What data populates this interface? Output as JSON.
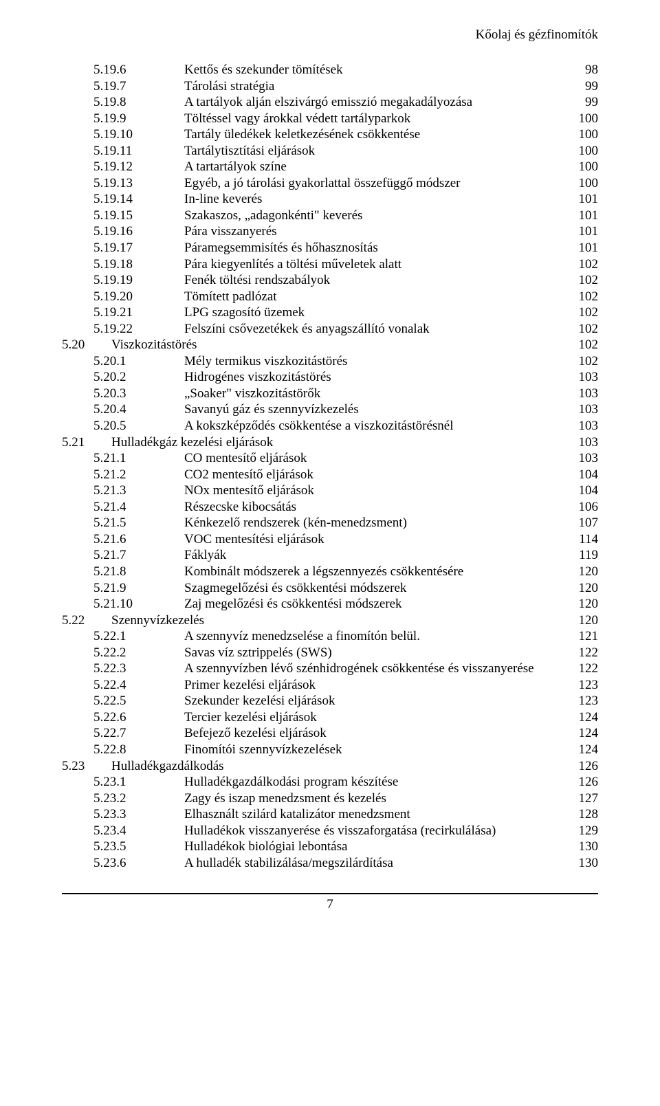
{
  "header": {
    "title": "Kőolaj és gézfinomítók"
  },
  "footer": {
    "page_number": "7"
  },
  "toc": {
    "entries": [
      {
        "level": 3,
        "num": "5.19.6",
        "text": "Kettős és szekunder tömítések",
        "page": "98"
      },
      {
        "level": 3,
        "num": "5.19.7",
        "text": "Tárolási stratégia",
        "page": "99"
      },
      {
        "level": 3,
        "num": "5.19.8",
        "text": "A tartályok alján elszivárgó emisszió megakadályozása",
        "page": "99"
      },
      {
        "level": 3,
        "num": "5.19.9",
        "text": "Töltéssel vagy árokkal védett tartályparkok",
        "page": "100"
      },
      {
        "level": 3,
        "num": "5.19.10",
        "text": "Tartály üledékek keletkezésének csökkentése",
        "page": "100"
      },
      {
        "level": 3,
        "num": "5.19.11",
        "text": "Tartálytisztítási eljárások",
        "page": "100"
      },
      {
        "level": 3,
        "num": "5.19.12",
        "text": "A tartartályok színe",
        "page": "100"
      },
      {
        "level": 3,
        "num": "5.19.13",
        "text": "Egyéb, a jó tárolási gyakorlattal összefüggő módszer",
        "page": "100"
      },
      {
        "level": 3,
        "num": "5.19.14",
        "text": "In-line keverés",
        "page": "101"
      },
      {
        "level": 3,
        "num": "5.19.15",
        "text": "Szakaszos, „adagonkénti\" keverés",
        "page": "101"
      },
      {
        "level": 3,
        "num": "5.19.16",
        "text": "Pára visszanyerés",
        "page": "101"
      },
      {
        "level": 3,
        "num": "5.19.17",
        "text": "Páramegsemmisítés és hőhasznosítás",
        "page": "101"
      },
      {
        "level": 3,
        "num": "5.19.18",
        "text": "Pára kiegyenlítés a töltési műveletek alatt",
        "page": "102"
      },
      {
        "level": 3,
        "num": "5.19.19",
        "text": "Fenék töltési rendszabályok",
        "page": "102"
      },
      {
        "level": 3,
        "num": "5.19.20",
        "text": "Tömített padlózat",
        "page": "102"
      },
      {
        "level": 3,
        "num": "5.19.21",
        "text": "LPG szagosító üzemek",
        "page": "102"
      },
      {
        "level": 3,
        "num": "5.19.22",
        "text": "Felszíni csővezetékek és anyagszállító vonalak",
        "page": "102"
      },
      {
        "level": 1,
        "num": "5.20",
        "text": "Viszkozitástörés",
        "page": "102"
      },
      {
        "level": 2,
        "num": "5.20.1",
        "text": "Mély termikus viszkozitástörés",
        "page": "102"
      },
      {
        "level": 2,
        "num": "5.20.2",
        "text": "Hidrogénes viszkozitástörés",
        "page": "103"
      },
      {
        "level": 2,
        "num": "5.20.3",
        "text": "„Soaker\" viszkozitástörők",
        "page": "103"
      },
      {
        "level": 2,
        "num": "5.20.4",
        "text": "Savanyú gáz és szennyvízkezelés",
        "page": "103"
      },
      {
        "level": 2,
        "num": "5.20.5",
        "text": "A kokszképződés csökkentése a viszkozitástörésnél",
        "page": "103"
      },
      {
        "level": 1,
        "num": "5.21",
        "text": "Hulladékgáz kezelési eljárások",
        "page": "103"
      },
      {
        "level": 2,
        "num": "5.21.1",
        "text": "CO mentesítő eljárások",
        "page": "103"
      },
      {
        "level": 2,
        "num": "5.21.2",
        "text": "CO2 mentesítő eljárások",
        "page": "104"
      },
      {
        "level": 2,
        "num": "5.21.3",
        "text": "NOx  mentesítő eljárások",
        "page": "104"
      },
      {
        "level": 2,
        "num": "5.21.4",
        "text": "Részecske kibocsátás",
        "page": "106"
      },
      {
        "level": 2,
        "num": "5.21.5",
        "text": "Kénkezelő rendszerek (kén-menedzsment)",
        "page": "107"
      },
      {
        "level": 2,
        "num": "5.21.6",
        "text": "VOC mentesítési eljárások",
        "page": "114"
      },
      {
        "level": 2,
        "num": "5.21.7",
        "text": "Fáklyák",
        "page": "119"
      },
      {
        "level": 2,
        "num": "5.21.8",
        "text": "Kombinált módszerek a légszennyezés csökkentésére",
        "page": "120"
      },
      {
        "level": 2,
        "num": "5.21.9",
        "text": "Szagmegelőzési és csökkentési módszerek",
        "page": "120"
      },
      {
        "level": 3,
        "num": "5.21.10",
        "text": "Zaj megelőzési és csökkentési módszerek",
        "page": "120"
      },
      {
        "level": 1,
        "num": "5.22",
        "text": "Szennyvízkezelés",
        "page": "120"
      },
      {
        "level": 2,
        "num": "5.22.1",
        "text": "A szennyvíz menedzselése a finomítón belül.",
        "page": "121"
      },
      {
        "level": 2,
        "num": "5.22.2",
        "text": "Savas víz sztrippelés (SWS)",
        "page": "122"
      },
      {
        "level": 2,
        "num": "5.22.3",
        "text": "A szennyvízben lévő szénhidrogének csökkentése és visszanyerése",
        "page": "122"
      },
      {
        "level": 2,
        "num": "5.22.4",
        "text": "Primer kezelési eljárások",
        "page": "123"
      },
      {
        "level": 2,
        "num": "5.22.5",
        "text": "Szekunder kezelési eljárások",
        "page": "123"
      },
      {
        "level": 2,
        "num": "5.22.6",
        "text": "Tercier kezelési eljárások",
        "page": "124"
      },
      {
        "level": 2,
        "num": "5.22.7",
        "text": "Befejező kezelési eljárások",
        "page": "124"
      },
      {
        "level": 2,
        "num": "5.22.8",
        "text": "Finomítói szennyvízkezelések",
        "page": "124"
      },
      {
        "level": 1,
        "num": "5.23",
        "text": "Hulladékgazdálkodás",
        "page": "126"
      },
      {
        "level": 2,
        "num": "5.23.1",
        "text": "Hulladékgazdálkodási program készítése",
        "page": "126"
      },
      {
        "level": 2,
        "num": "5.23.2",
        "text": "Zagy és iszap menedzsment és kezelés",
        "page": "127"
      },
      {
        "level": 2,
        "num": "5.23.3",
        "text": "Elhasznált szilárd katalizátor menedzsment",
        "page": "128"
      },
      {
        "level": 2,
        "num": "5.23.4",
        "text": "Hulladékok visszanyerése és visszaforgatása (recirkulálása)",
        "page": "129"
      },
      {
        "level": 2,
        "num": "5.23.5",
        "text": "Hulladékok biológiai lebontása",
        "page": "130"
      },
      {
        "level": 2,
        "num": "5.23.6",
        "text": "A hulladék stabilizálása/megszilárdítása",
        "page": "130"
      }
    ]
  },
  "styling": {
    "font_family": "Times New Roman",
    "font_size_pt": 14,
    "text_color": "#000000",
    "background_color": "#ffffff",
    "footer_border_color": "#000000"
  }
}
